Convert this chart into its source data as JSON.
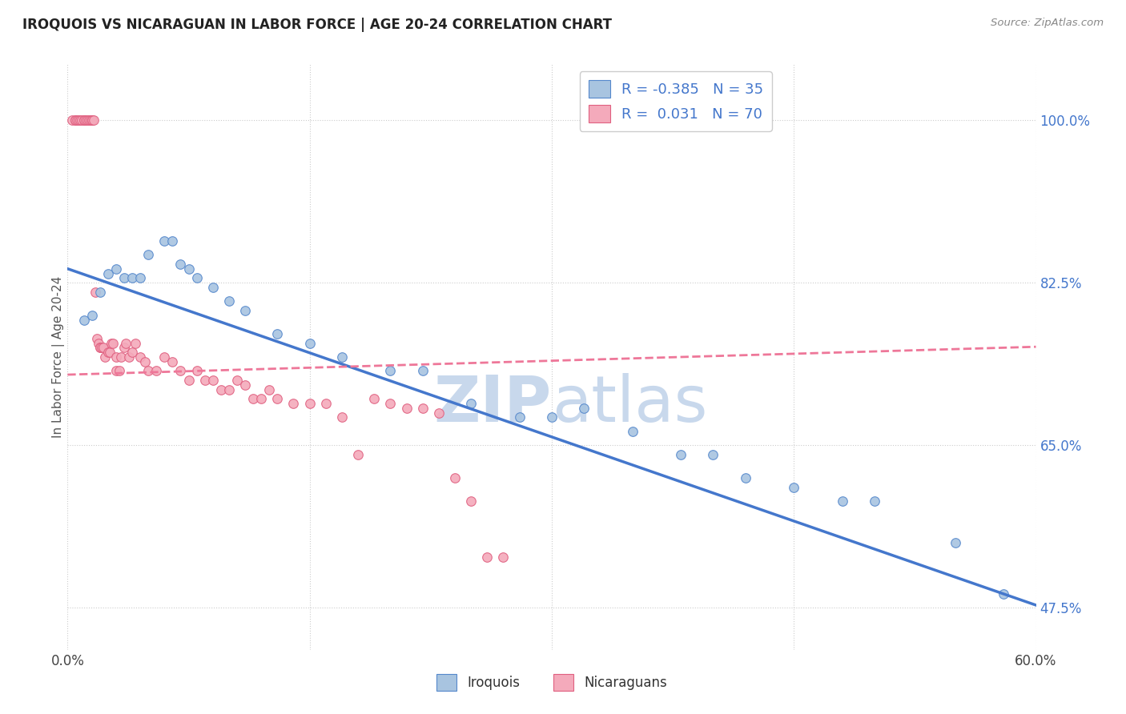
{
  "title": "IROQUOIS VS NICARAGUAN IN LABOR FORCE | AGE 20-24 CORRELATION CHART",
  "source": "Source: ZipAtlas.com",
  "ylabel": "In Labor Force | Age 20-24",
  "legend_iroquois": "Iroquois",
  "legend_nicaraguans": "Nicaraguans",
  "r_iroquois": -0.385,
  "n_iroquois": 35,
  "r_nicaraguans": 0.031,
  "n_nicaraguans": 70,
  "blue_color": "#A8C4E0",
  "pink_color": "#F4AABB",
  "blue_edge_color": "#5588CC",
  "pink_edge_color": "#E06080",
  "blue_line_color": "#4477CC",
  "pink_line_color": "#EE7799",
  "watermark_color": "#C8D8EC",
  "background_color": "#FFFFFF",
  "grid_color": "#CCCCCC",
  "iroquois_x": [
    0.01,
    0.015,
    0.02,
    0.025,
    0.03,
    0.035,
    0.04,
    0.045,
    0.05,
    0.06,
    0.065,
    0.07,
    0.075,
    0.08,
    0.09,
    0.1,
    0.11,
    0.13,
    0.15,
    0.17,
    0.2,
    0.22,
    0.25,
    0.28,
    0.3,
    0.32,
    0.35,
    0.38,
    0.4,
    0.42,
    0.45,
    0.48,
    0.5,
    0.55,
    0.58
  ],
  "iroquois_y": [
    0.785,
    0.79,
    0.815,
    0.835,
    0.84,
    0.83,
    0.83,
    0.83,
    0.855,
    0.87,
    0.87,
    0.845,
    0.84,
    0.83,
    0.82,
    0.805,
    0.795,
    0.77,
    0.76,
    0.745,
    0.73,
    0.73,
    0.695,
    0.68,
    0.68,
    0.69,
    0.665,
    0.64,
    0.64,
    0.615,
    0.605,
    0.59,
    0.59,
    0.545,
    0.49
  ],
  "nicaraguans_x": [
    0.003,
    0.005,
    0.005,
    0.006,
    0.007,
    0.008,
    0.009,
    0.01,
    0.01,
    0.011,
    0.012,
    0.013,
    0.014,
    0.015,
    0.015,
    0.016,
    0.017,
    0.018,
    0.019,
    0.02,
    0.02,
    0.021,
    0.022,
    0.023,
    0.025,
    0.026,
    0.027,
    0.028,
    0.03,
    0.03,
    0.032,
    0.033,
    0.035,
    0.036,
    0.038,
    0.04,
    0.042,
    0.045,
    0.048,
    0.05,
    0.055,
    0.06,
    0.065,
    0.07,
    0.075,
    0.08,
    0.085,
    0.09,
    0.095,
    0.1,
    0.105,
    0.11,
    0.115,
    0.12,
    0.125,
    0.13,
    0.14,
    0.15,
    0.16,
    0.17,
    0.18,
    0.19,
    0.2,
    0.21,
    0.22,
    0.23,
    0.24,
    0.25,
    0.26,
    0.27
  ],
  "nicaraguans_y": [
    1.0,
    1.0,
    1.0,
    1.0,
    1.0,
    1.0,
    1.0,
    1.0,
    1.0,
    1.0,
    1.0,
    1.0,
    1.0,
    1.0,
    1.0,
    1.0,
    0.815,
    0.765,
    0.76,
    0.755,
    0.755,
    0.755,
    0.755,
    0.745,
    0.75,
    0.75,
    0.76,
    0.76,
    0.745,
    0.73,
    0.73,
    0.745,
    0.755,
    0.76,
    0.745,
    0.75,
    0.76,
    0.745,
    0.74,
    0.73,
    0.73,
    0.745,
    0.74,
    0.73,
    0.72,
    0.73,
    0.72,
    0.72,
    0.71,
    0.71,
    0.72,
    0.715,
    0.7,
    0.7,
    0.71,
    0.7,
    0.695,
    0.695,
    0.695,
    0.68,
    0.64,
    0.7,
    0.695,
    0.69,
    0.69,
    0.685,
    0.615,
    0.59,
    0.53,
    0.53
  ],
  "xmin": 0.0,
  "xmax": 0.6,
  "ymin": 0.43,
  "ymax": 1.06,
  "yticks": [
    1.0,
    0.825,
    0.65,
    0.475
  ],
  "ytick_labels": [
    "100.0%",
    "82.5%",
    "65.0%",
    "47.5%"
  ],
  "xticks": [
    0.0,
    0.15,
    0.3,
    0.45,
    0.6
  ],
  "xtick_labels": [
    "0.0%",
    "",
    "",
    "",
    "60.0%"
  ],
  "blue_line_x0": 0.0,
  "blue_line_x1": 0.6,
  "blue_line_y0": 0.84,
  "blue_line_y1": 0.478,
  "pink_line_x0": 0.0,
  "pink_line_x1": 0.6,
  "pink_line_y0": 0.726,
  "pink_line_y1": 0.756
}
